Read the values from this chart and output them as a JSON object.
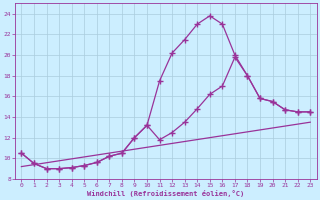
{
  "background_color": "#cceeff",
  "grid_color": "#aaccdd",
  "line_color": "#993399",
  "marker": "+",
  "markersize": 4,
  "linewidth": 0.9,
  "xlabel": "Windchill (Refroidissement éolien,°C)",
  "xlim": [
    -0.5,
    23.5
  ],
  "ylim": [
    8,
    25
  ],
  "yticks": [
    8,
    10,
    12,
    14,
    16,
    18,
    20,
    22,
    24
  ],
  "xticks": [
    0,
    1,
    2,
    3,
    4,
    5,
    6,
    7,
    8,
    9,
    10,
    11,
    12,
    13,
    14,
    15,
    16,
    17,
    18,
    19,
    20,
    21,
    22,
    23
  ],
  "series": [
    {
      "x": [
        0,
        1,
        2,
        3,
        4,
        5,
        6,
        7,
        8,
        9,
        10,
        11,
        12,
        13,
        14,
        15,
        16,
        17,
        18,
        19,
        20,
        21,
        22,
        23
      ],
      "y": [
        10.5,
        9.5,
        9.0,
        9.0,
        9.1,
        9.3,
        9.6,
        10.2,
        10.5,
        12.0,
        13.2,
        17.5,
        20.2,
        21.5,
        23.0,
        23.8,
        23.0,
        20.0,
        18.0,
        15.8,
        15.5,
        14.7,
        14.5,
        14.5
      ],
      "marker": true
    },
    {
      "x": [
        0,
        1,
        2,
        3,
        4,
        5,
        6,
        7,
        8,
        9,
        10,
        11,
        12,
        13,
        14,
        15,
        16,
        17,
        18,
        19,
        20,
        21,
        22,
        23
      ],
      "y": [
        10.5,
        9.5,
        9.0,
        9.0,
        9.1,
        9.3,
        9.6,
        10.2,
        10.5,
        12.0,
        13.2,
        11.8,
        12.5,
        13.5,
        14.8,
        16.2,
        17.0,
        19.8,
        18.0,
        15.8,
        15.5,
        14.7,
        14.5,
        14.5
      ],
      "marker": true
    },
    {
      "x": [
        0,
        23
      ],
      "y": [
        9.2,
        13.5
      ],
      "marker": false
    }
  ]
}
